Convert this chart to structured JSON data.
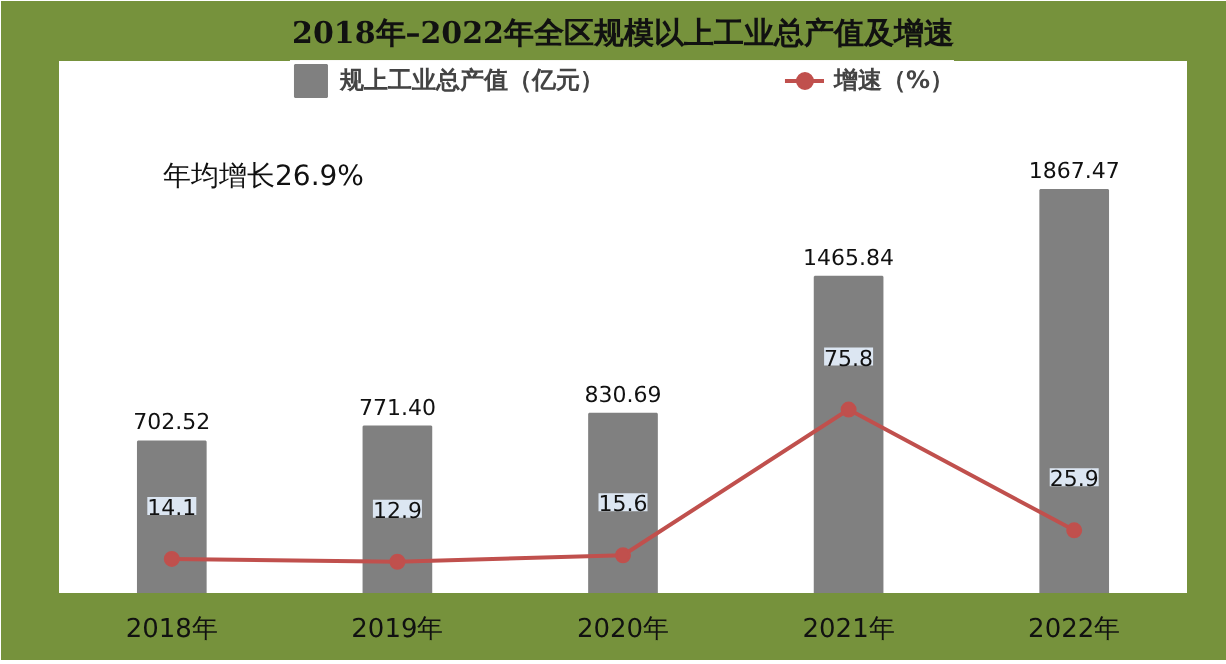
{
  "chart_data": {
    "type": "bar",
    "title": "2018年–2022年全区规模以上工业总产值及增速",
    "categories": [
      "2018年",
      "2019年",
      "2020年",
      "2021年",
      "2022年"
    ],
    "series": [
      {
        "name": "规上工业总产值（亿元）",
        "color": "#808080",
        "values": [
          702.52,
          771.4,
          830.69,
          1465.84,
          1867.47
        ],
        "value_labels": [
          "702.52",
          "771.40",
          "830.69",
          "1465.84",
          "1867.47"
        ]
      },
      {
        "name": "增速（%）",
        "type": "line",
        "axis": "y2",
        "color": "#c0504d",
        "marker": "circle",
        "values": [
          14.1,
          12.9,
          15.6,
          75.8,
          25.9
        ],
        "value_labels": [
          "14.1",
          "12.9",
          "15.6",
          "75.8",
          "25.9"
        ]
      }
    ],
    "annotations": [
      "年均增长26.9%"
    ],
    "legend": "top",
    "tick_labels": "x"
  }
}
